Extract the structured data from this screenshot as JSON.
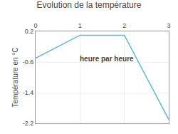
{
  "chart_data": {
    "type": "line",
    "title": "Evolution de la température",
    "y_label": "Température en °C",
    "annotations": [
      "heure par heure"
    ],
    "x": [
      0,
      1,
      2,
      3
    ],
    "series": [
      {
        "type": "line",
        "color": "#5bb8d4",
        "values": [
          -0.5,
          0.1,
          0.1,
          -2.1
        ]
      },
      {
        "type": "area",
        "color": "#aed8e6",
        "values": [
          -0.5,
          0.1,
          0.1,
          -2.1
        ]
      }
    ],
    "xlim": [
      0,
      3
    ],
    "xticks": [
      0,
      1,
      2,
      3
    ],
    "ylim": [
      -2.2,
      0.2
    ],
    "yticks": [
      0.2,
      -0.6,
      -1.4,
      -2.2
    ],
    "grid": true
  }
}
